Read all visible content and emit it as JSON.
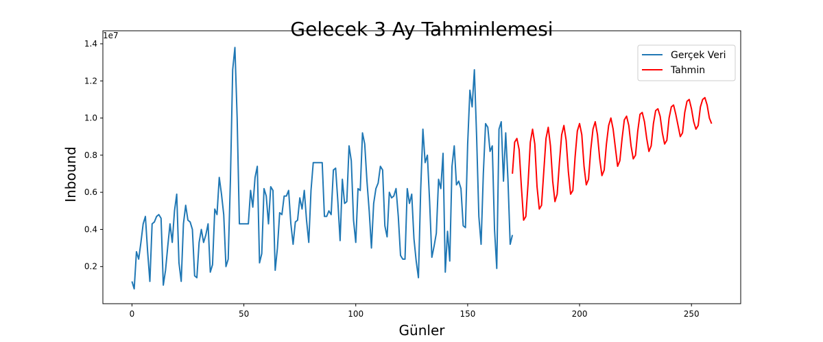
{
  "chart_data": {
    "type": "line",
    "title": "Gelecek 3 Ay Tahminlemesi",
    "xlabel": "Günler",
    "ylabel": "Inbound",
    "y_offset_label": "1e7",
    "xlim": [
      -13,
      272
    ],
    "ylim": [
      0.0,
      1.47
    ],
    "x_ticks": [
      0,
      50,
      100,
      150,
      200,
      250
    ],
    "y_ticks": [
      0.2,
      0.4,
      0.6,
      0.8,
      1.0,
      1.2,
      1.4
    ],
    "y_tick_labels": [
      "0.2",
      "0.4",
      "0.6",
      "0.8",
      "1.0",
      "1.2",
      "1.4"
    ],
    "legend_position": "top-right",
    "series": [
      {
        "name": "Gerçek Veri",
        "color": "#1f77b4",
        "x_start": 0,
        "values": [
          0.12,
          0.08,
          0.28,
          0.24,
          0.33,
          0.43,
          0.47,
          0.28,
          0.12,
          0.43,
          0.44,
          0.47,
          0.48,
          0.46,
          0.1,
          0.18,
          0.31,
          0.43,
          0.33,
          0.5,
          0.59,
          0.22,
          0.12,
          0.43,
          0.53,
          0.45,
          0.44,
          0.4,
          0.15,
          0.14,
          0.33,
          0.4,
          0.33,
          0.37,
          0.43,
          0.17,
          0.21,
          0.51,
          0.48,
          0.68,
          0.59,
          0.48,
          0.2,
          0.24,
          0.67,
          1.26,
          1.38,
          1.0,
          0.43,
          0.43,
          0.43,
          0.43,
          0.43,
          0.61,
          0.52,
          0.68,
          0.74,
          0.22,
          0.27,
          0.62,
          0.58,
          0.43,
          0.63,
          0.61,
          0.18,
          0.3,
          0.49,
          0.48,
          0.58,
          0.58,
          0.61,
          0.43,
          0.32,
          0.44,
          0.45,
          0.57,
          0.51,
          0.61,
          0.45,
          0.33,
          0.61,
          0.76,
          0.76,
          0.76,
          0.76,
          0.76,
          0.47,
          0.47,
          0.5,
          0.48,
          0.72,
          0.73,
          0.55,
          0.34,
          0.67,
          0.54,
          0.55,
          0.85,
          0.77,
          0.45,
          0.33,
          0.62,
          0.61,
          0.92,
          0.86,
          0.66,
          0.5,
          0.3,
          0.54,
          0.62,
          0.65,
          0.74,
          0.72,
          0.42,
          0.36,
          0.6,
          0.57,
          0.58,
          0.62,
          0.47,
          0.26,
          0.24,
          0.24,
          0.62,
          0.54,
          0.59,
          0.35,
          0.23,
          0.14,
          0.61,
          0.94,
          0.76,
          0.8,
          0.55,
          0.25,
          0.31,
          0.38,
          0.67,
          0.62,
          0.81,
          0.17,
          0.39,
          0.23,
          0.74,
          0.85,
          0.64,
          0.66,
          0.62,
          0.42,
          0.41,
          0.86,
          1.15,
          1.06,
          1.26,
          0.9,
          0.47,
          0.32,
          0.7,
          0.97,
          0.95,
          0.82,
          0.85,
          0.4,
          0.19,
          0.94,
          0.98,
          0.66,
          0.92,
          0.67,
          0.32,
          0.37
        ]
      },
      {
        "name": "Tahmin",
        "color": "#ff0000",
        "x_start": 170,
        "values": [
          0.7,
          0.87,
          0.89,
          0.83,
          0.63,
          0.45,
          0.47,
          0.65,
          0.87,
          0.94,
          0.86,
          0.63,
          0.51,
          0.53,
          0.71,
          0.89,
          0.95,
          0.85,
          0.66,
          0.55,
          0.59,
          0.76,
          0.91,
          0.96,
          0.88,
          0.71,
          0.59,
          0.61,
          0.79,
          0.93,
          0.97,
          0.91,
          0.74,
          0.64,
          0.67,
          0.83,
          0.94,
          0.98,
          0.91,
          0.78,
          0.69,
          0.72,
          0.86,
          0.96,
          1.0,
          0.94,
          0.84,
          0.74,
          0.77,
          0.89,
          0.99,
          1.01,
          0.96,
          0.85,
          0.78,
          0.8,
          0.93,
          1.02,
          1.03,
          0.98,
          0.89,
          0.82,
          0.85,
          0.97,
          1.04,
          1.05,
          1.01,
          0.92,
          0.86,
          0.88,
          1.0,
          1.06,
          1.07,
          1.02,
          0.96,
          0.9,
          0.92,
          1.03,
          1.09,
          1.1,
          1.05,
          0.98,
          0.94,
          0.96,
          1.06,
          1.1,
          1.11,
          1.07,
          1.0,
          0.97
        ]
      }
    ]
  }
}
